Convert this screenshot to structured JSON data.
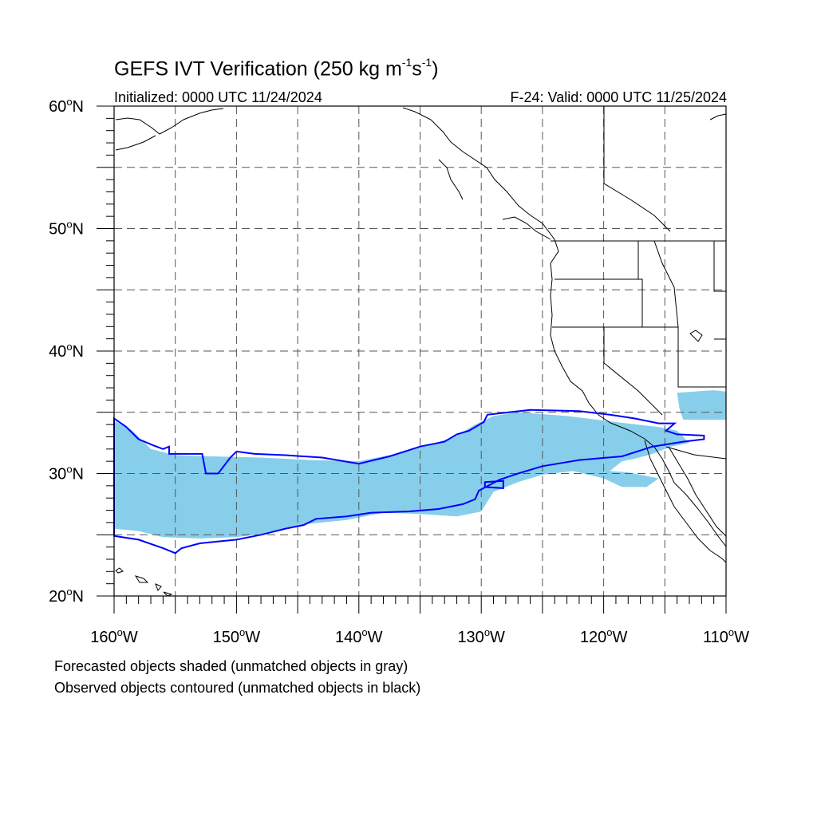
{
  "header": {
    "title_main": "GEFS IVT Verification (250 kg m",
    "title_sup1": "-1",
    "title_mid": "s",
    "title_sup2": "-1",
    "title_end": ")",
    "initialized": "Initialized: 0000 UTC 11/24/2024",
    "valid": "F-24: Valid: 0000 UTC 11/25/2024"
  },
  "footer": {
    "line1": "Forecasted objects shaded (unmatched objects in gray)",
    "line2": "Observed objects contoured (unmatched objects in black)"
  },
  "map": {
    "lon_range": [
      -160,
      -110
    ],
    "lat_range": [
      20,
      60
    ],
    "x_ticks": [
      {
        "lon": -160,
        "label": "160°W",
        "num": "160",
        "unit": "W"
      },
      {
        "lon": -150,
        "label": "150°W",
        "num": "150",
        "unit": "W"
      },
      {
        "lon": -140,
        "label": "140°W",
        "num": "140",
        "unit": "W"
      },
      {
        "lon": -130,
        "label": "130°W",
        "num": "130",
        "unit": "W"
      },
      {
        "lon": -120,
        "label": "120°W",
        "num": "120",
        "unit": "W"
      },
      {
        "lon": -110,
        "label": "110°W",
        "num": "110",
        "unit": "W"
      }
    ],
    "y_ticks": [
      {
        "lat": 60,
        "label": "60°N",
        "num": "60",
        "unit": "N"
      },
      {
        "lat": 50,
        "label": "50°N",
        "num": "50",
        "unit": "N"
      },
      {
        "lat": 40,
        "label": "40°N",
        "num": "40",
        "unit": "N"
      },
      {
        "lat": 30,
        "label": "30°N",
        "num": "30",
        "unit": "N"
      },
      {
        "lat": 20,
        "label": "20°N",
        "num": "20",
        "unit": "N"
      }
    ],
    "gridline_lons": [
      -155,
      -150,
      -145,
      -140,
      -135,
      -130,
      -125,
      -120,
      -115
    ],
    "gridline_lats": [
      55,
      50,
      45,
      40,
      35,
      30,
      25
    ],
    "forecast_color": "#87ceeb",
    "observed_color": "#0000ff",
    "forecast_object": [
      [
        -160,
        34.3
      ],
      [
        -158.5,
        33.5
      ],
      [
        -157,
        32
      ],
      [
        -155,
        31.5
      ],
      [
        -152,
        31.4
      ],
      [
        -148,
        31.3
      ],
      [
        -144,
        31.1
      ],
      [
        -140,
        31
      ],
      [
        -137,
        31.6
      ],
      [
        -134,
        32.4
      ],
      [
        -132,
        33.1
      ],
      [
        -130.5,
        34
      ],
      [
        -129,
        34.7
      ],
      [
        -127,
        35
      ],
      [
        -123,
        34.7
      ],
      [
        -119,
        34.2
      ],
      [
        -115.5,
        33.8
      ],
      [
        -114,
        33.5
      ],
      [
        -113,
        32.5
      ],
      [
        -114.5,
        32.2
      ],
      [
        -116,
        31.6
      ],
      [
        -117.5,
        31.2
      ],
      [
        -118.5,
        31
      ],
      [
        -119.5,
        30.2
      ],
      [
        -118,
        30.1
      ],
      [
        -115.5,
        29.6
      ],
      [
        -116.5,
        28.9
      ],
      [
        -118.5,
        28.9
      ],
      [
        -120,
        29.6
      ],
      [
        -122.5,
        30.2
      ],
      [
        -125,
        29.9
      ],
      [
        -127,
        29.3
      ],
      [
        -129,
        28.5
      ],
      [
        -130,
        26.9
      ],
      [
        -132,
        26.5
      ],
      [
        -135,
        26.7
      ],
      [
        -138,
        26.8
      ],
      [
        -141,
        26.2
      ],
      [
        -144,
        25.9
      ],
      [
        -147,
        25.2
      ],
      [
        -150,
        24.8
      ],
      [
        -153,
        24.7
      ],
      [
        -156,
        24.8
      ],
      [
        -158,
        25.3
      ],
      [
        -160,
        25.5
      ]
    ],
    "forecast_blob2": [
      [
        -114,
        36.6
      ],
      [
        -111,
        36.8
      ],
      [
        -110,
        36.7
      ],
      [
        -110,
        34.4
      ],
      [
        -113.5,
        34.4
      ],
      [
        -113.8,
        35.3
      ]
    ],
    "observed_object": [
      [
        -160,
        34.5
      ],
      [
        -159,
        33.8
      ],
      [
        -158,
        32.8
      ],
      [
        -156.8,
        32.3
      ],
      [
        -156,
        32
      ],
      [
        -155.5,
        32.2
      ],
      [
        -155.5,
        31.6
      ],
      [
        -152.8,
        31.6
      ],
      [
        -152.5,
        30
      ],
      [
        -151.5,
        30
      ],
      [
        -150.5,
        31.3
      ],
      [
        -150,
        31.8
      ],
      [
        -148.5,
        31.6
      ],
      [
        -146,
        31.5
      ],
      [
        -143,
        31.3
      ],
      [
        -140,
        30.8
      ],
      [
        -137.5,
        31.4
      ],
      [
        -135,
        32.2
      ],
      [
        -133,
        32.6
      ],
      [
        -132,
        33.2
      ],
      [
        -131,
        33.5
      ],
      [
        -129.8,
        34.2
      ],
      [
        -129.5,
        34.8
      ],
      [
        -126,
        35.2
      ],
      [
        -122,
        35.1
      ],
      [
        -119.5,
        34.8
      ],
      [
        -117.5,
        34.5
      ],
      [
        -115.5,
        34.1
      ],
      [
        -114.2,
        34.1
      ],
      [
        -114.9,
        33.5
      ],
      [
        -114,
        33.2
      ],
      [
        -111.8,
        33.1
      ],
      [
        -111.8,
        32.8
      ],
      [
        -113.5,
        32.6
      ],
      [
        -116,
        32.2
      ],
      [
        -118.5,
        31.4
      ],
      [
        -122,
        31.1
      ],
      [
        -125,
        30.6
      ],
      [
        -127,
        30.0
      ],
      [
        -128.5,
        29.5
      ],
      [
        -130.2,
        28.6
      ],
      [
        -130.5,
        27.9
      ],
      [
        -131.5,
        27.5
      ],
      [
        -133.5,
        27.1
      ],
      [
        -136,
        26.9
      ],
      [
        -139,
        26.8
      ],
      [
        -141,
        26.5
      ],
      [
        -143.5,
        26.3
      ],
      [
        -144.5,
        25.8
      ],
      [
        -146,
        25.5
      ],
      [
        -148,
        25
      ],
      [
        -150,
        24.6
      ],
      [
        -153,
        24.3
      ],
      [
        -154.5,
        23.9
      ],
      [
        -155,
        23.5
      ],
      [
        -156,
        23.9
      ],
      [
        -158,
        24.6
      ],
      [
        -160,
        24.9
      ]
    ],
    "observed_hole": [
      [
        -129.7,
        29.3
      ],
      [
        -128.2,
        29.4
      ],
      [
        -128.2,
        28.8
      ],
      [
        -129.7,
        28.9
      ]
    ]
  }
}
